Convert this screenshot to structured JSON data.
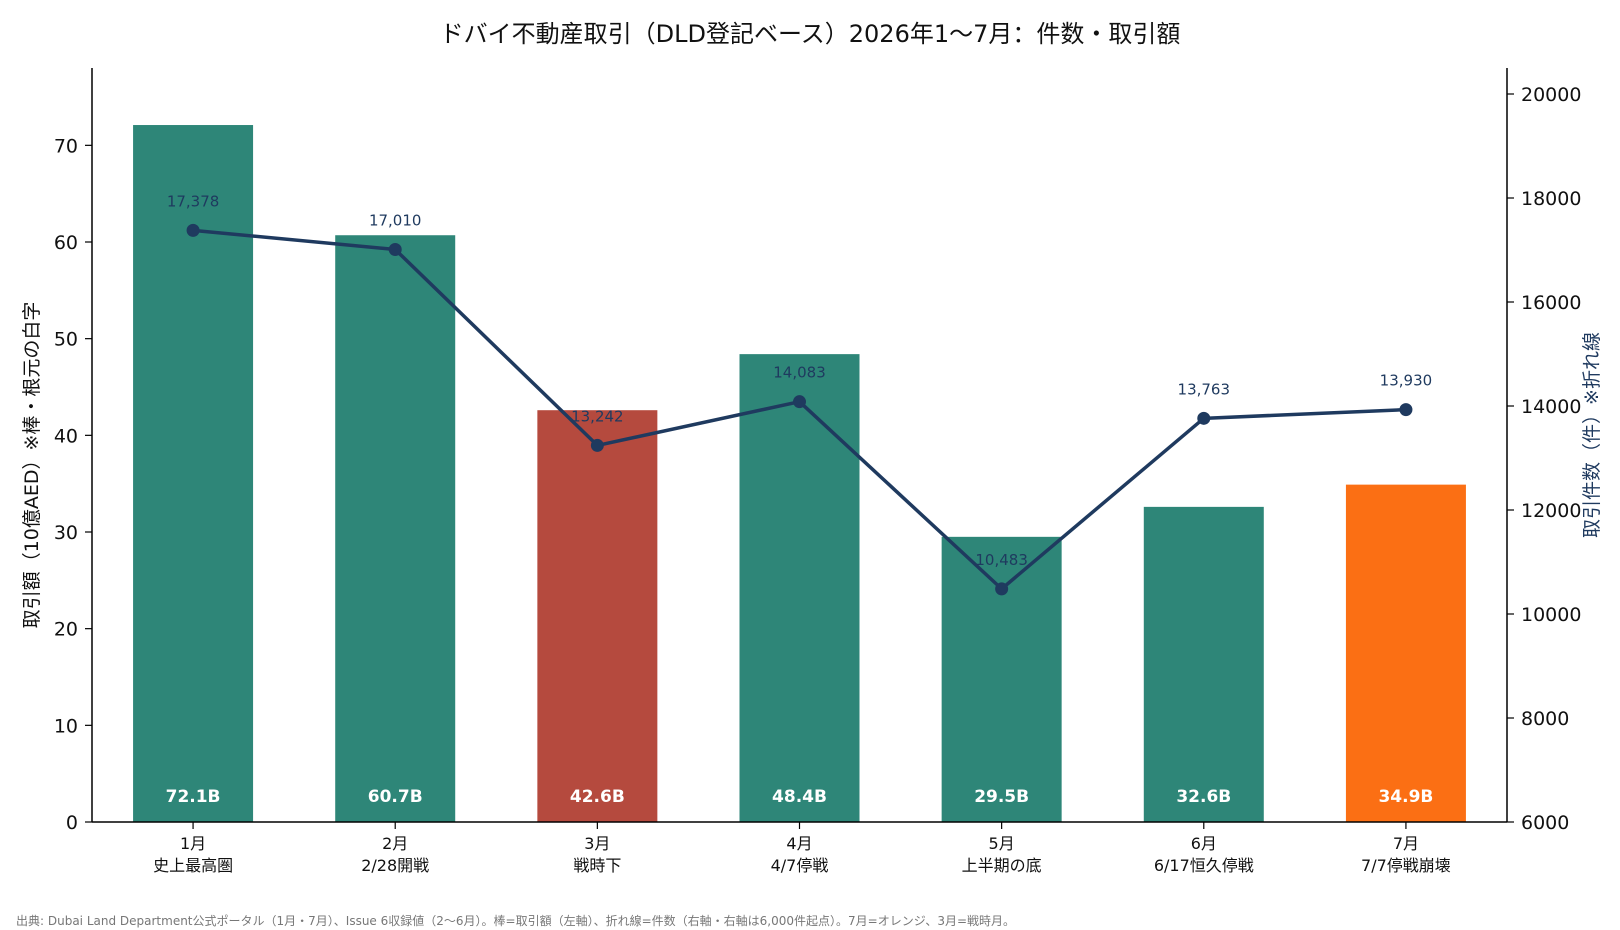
{
  "chart_data": {
    "type": "bar+line",
    "title": "ドバイ不動産取引（DLD登記ベース）2026年1〜7月：件数・取引額",
    "categories": [
      {
        "month": "1月",
        "note": "史上最高圏"
      },
      {
        "month": "2月",
        "note": "2/28開戦"
      },
      {
        "month": "3月",
        "note": "戦時下"
      },
      {
        "month": "4月",
        "note": "4/7停戦"
      },
      {
        "month": "5月",
        "note": "上半期の底"
      },
      {
        "month": "6月",
        "note": "6/17恒久停戦"
      },
      {
        "month": "7月",
        "note": "7/7停戦崩壊"
      }
    ],
    "bars": {
      "axis": "left",
      "values": [
        72.1,
        60.7,
        42.6,
        48.4,
        29.5,
        32.6,
        34.9
      ],
      "labels": [
        "72.1B",
        "60.7B",
        "42.6B",
        "48.4B",
        "29.5B",
        "32.6B",
        "34.9B"
      ],
      "colors": [
        "#2e8678",
        "#2e8678",
        "#b54a3e",
        "#2e8678",
        "#2e8678",
        "#2e8678",
        "#fb6f14"
      ]
    },
    "line": {
      "axis": "right",
      "values": [
        17378,
        17010,
        13242,
        14083,
        10483,
        13763,
        13930
      ],
      "labels": [
        "17,378",
        "17,010",
        "13,242",
        "14,083",
        "10,483",
        "13,763",
        "13,930"
      ],
      "color": "#1f3a5f"
    },
    "left_axis": {
      "label": "取引額（10億AED）※棒・根元の白字",
      "ylim": [
        0,
        78
      ],
      "ticks": [
        0,
        10,
        20,
        30,
        40,
        50,
        60,
        70
      ]
    },
    "right_axis": {
      "label": "取引件数（件）※折れ線",
      "ylim": [
        6000,
        20500
      ],
      "ticks": [
        6000,
        8000,
        10000,
        12000,
        14000,
        16000,
        18000,
        20000
      ]
    },
    "grid": false,
    "source": "出典: Dubai Land Department公式ポータル（1月・7月）、Issue 6収録値（2〜6月）。棒=取引額（左軸）、折れ線=件数（右軸・右軸は6,000件起点）。7月=オレンジ、3月=戦時月。"
  }
}
